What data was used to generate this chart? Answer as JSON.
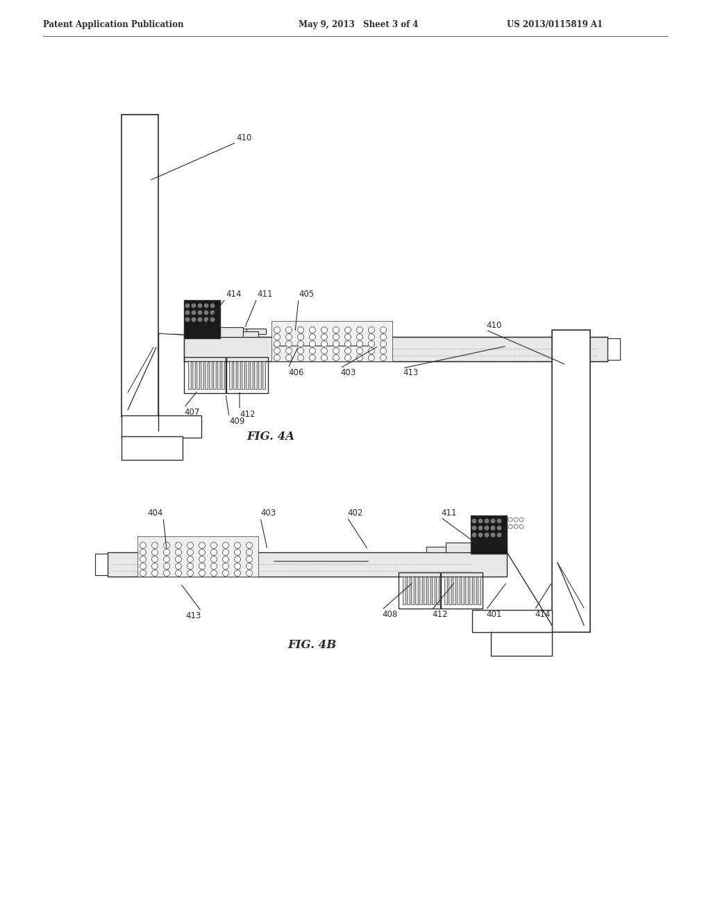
{
  "bg_color": "#ffffff",
  "header_text": "Patent Application Publication",
  "header_date": "May 9, 2013   Sheet 3 of 4",
  "header_patent": "US 2013/0115819 A1",
  "fig4a_label": "FIG. 4A",
  "fig4b_label": "FIG. 4B",
  "lc": "#2a2a2a",
  "dark": "#1a1a1a",
  "mid_gray": "#888888",
  "light_gray": "#dddddd",
  "pcb_gray": "#e8e8e8",
  "conn_dots_bg": "#c8c8c8"
}
